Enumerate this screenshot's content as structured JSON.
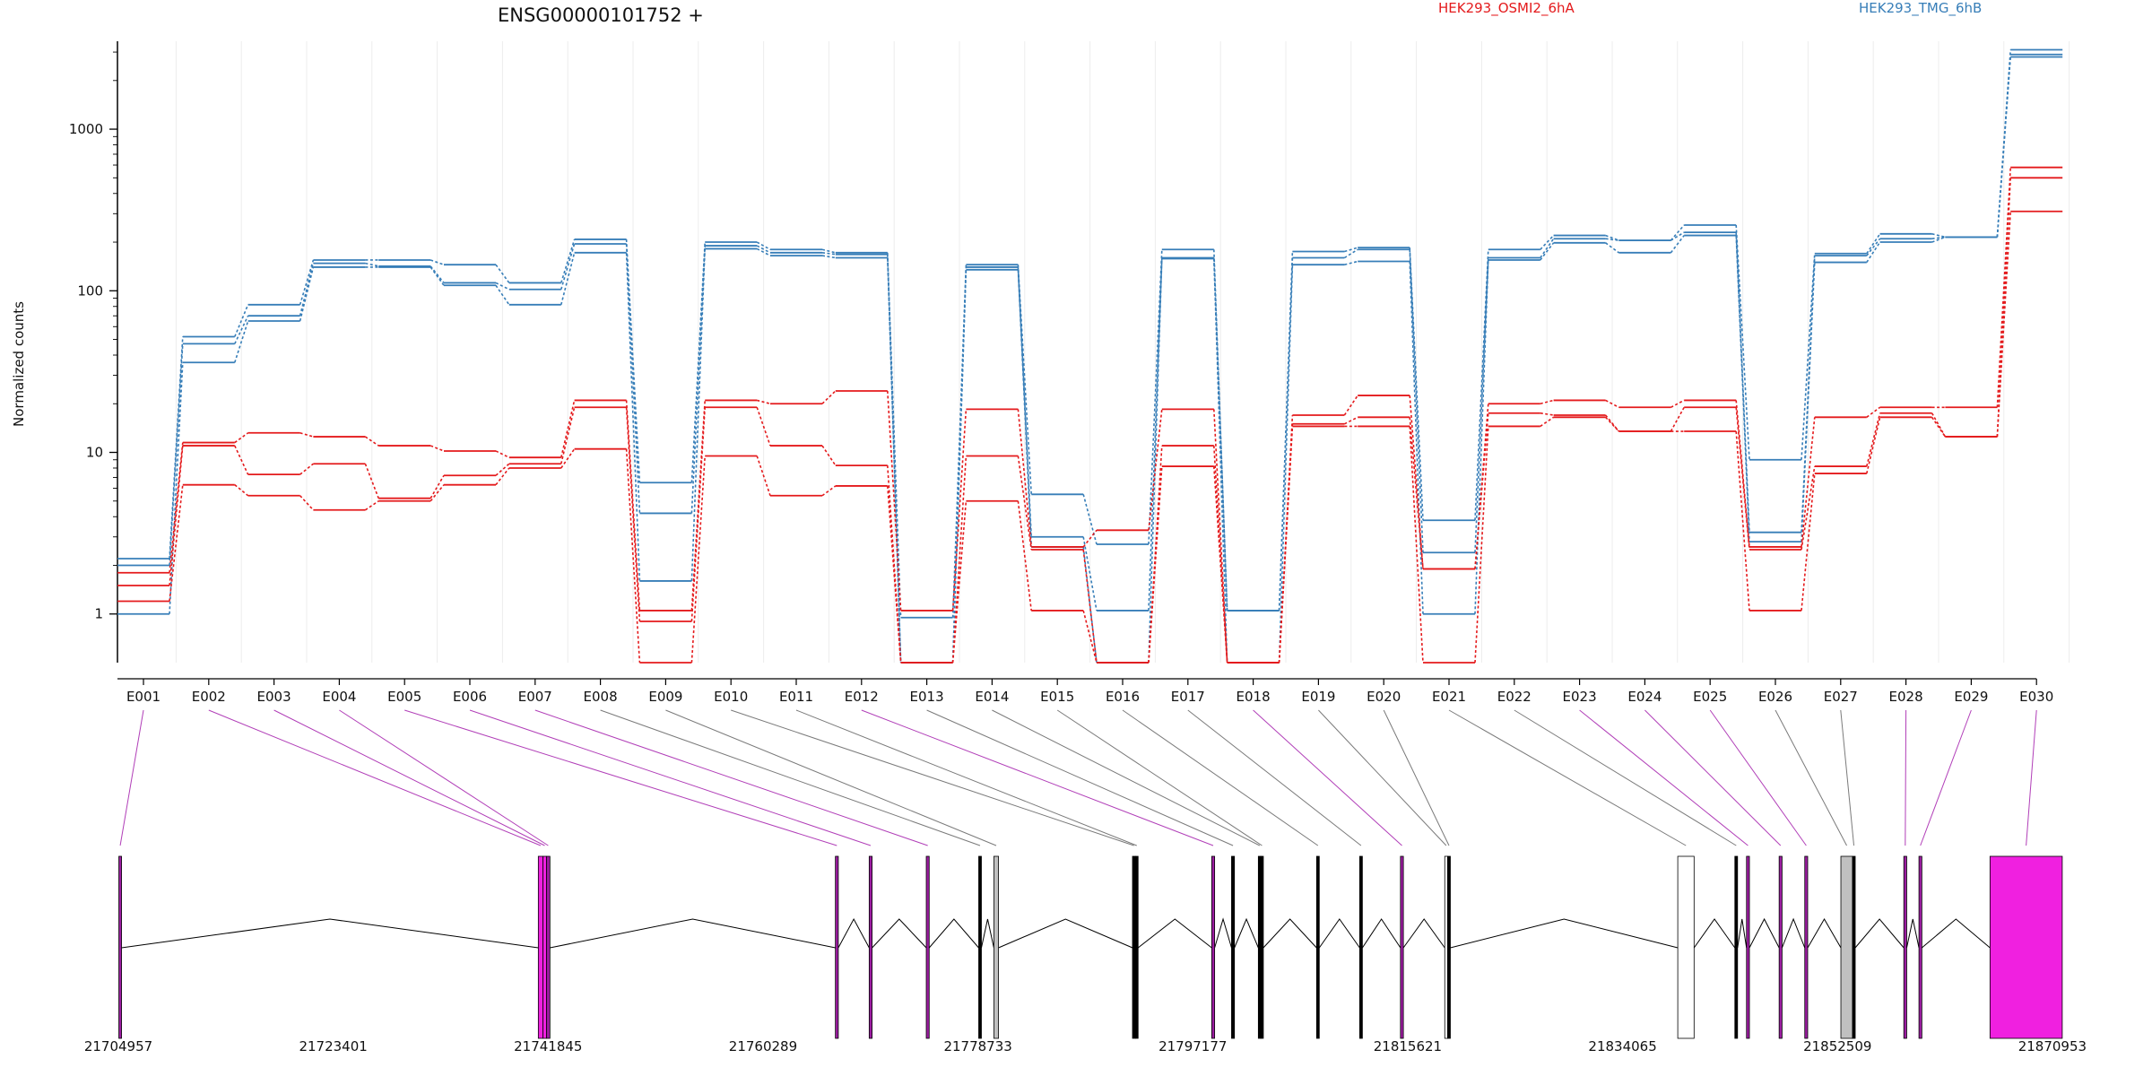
{
  "chart_data": {
    "type": "line",
    "title": "ENSG00000101752 +",
    "ylabel": "Normalized counts",
    "yscale": "log",
    "ylim": [
      0.5,
      3500
    ],
    "yticks": [
      1,
      10,
      100,
      1000
    ],
    "grid": false,
    "legend_position": "top",
    "legend": [
      {
        "name": "HEK293_OSMI2_6hA",
        "color": "#e41a1c"
      },
      {
        "name": "HEK293_TMG_6hB",
        "color": "#377eb8"
      }
    ],
    "categories": [
      "E001",
      "E002",
      "E003",
      "E004",
      "E005",
      "E006",
      "E007",
      "E008",
      "E009",
      "E010",
      "E011",
      "E012",
      "E013",
      "E014",
      "E015",
      "E016",
      "E017",
      "E018",
      "E019",
      "E020",
      "E021",
      "E022",
      "E023",
      "E024",
      "E025",
      "E026",
      "E027",
      "E028",
      "E029",
      "E030"
    ],
    "series": [
      {
        "group": "HEK293_TMG_6hB",
        "color": "#377eb8",
        "values": [
          2.2,
          52,
          82,
          155,
          155,
          145,
          112,
          208,
          6.5,
          200,
          180,
          172,
          0.95,
          145,
          5.5,
          2.7,
          180,
          1.05,
          175,
          185,
          3.8,
          180,
          220,
          205,
          255,
          9,
          170,
          225,
          215,
          3100
        ]
      },
      {
        "group": "HEK293_TMG_6hB",
        "color": "#377eb8",
        "values": [
          2.0,
          47,
          70,
          148,
          142,
          112,
          102,
          195,
          4.2,
          190,
          172,
          168,
          0.5,
          140,
          3.0,
          1.05,
          160,
          1.05,
          160,
          180,
          2.4,
          160,
          210,
          205,
          230,
          3.2,
          165,
          210,
          215,
          2900
        ]
      },
      {
        "group": "HEK293_TMG_6hB",
        "color": "#377eb8",
        "values": [
          1.0,
          36,
          65,
          140,
          140,
          108,
          82,
          172,
          1.6,
          182,
          165,
          160,
          0.5,
          135,
          2.6,
          0.5,
          158,
          0.5,
          145,
          152,
          1.0,
          155,
          198,
          172,
          220,
          2.8,
          150,
          200,
          215,
          2800
        ]
      },
      {
        "group": "HEK293_OSMI2_6hA",
        "color": "#e41a1c",
        "values": [
          1.8,
          11.5,
          13.2,
          12.5,
          11,
          10.2,
          9.3,
          21,
          1.05,
          21,
          20,
          24,
          1.05,
          18.5,
          2.6,
          3.3,
          18.5,
          0.5,
          17,
          22.5,
          1.9,
          20,
          21,
          19,
          21,
          2.6,
          16.5,
          19,
          19,
          580
        ]
      },
      {
        "group": "HEK293_OSMI2_6hA",
        "color": "#e41a1c",
        "values": [
          1.5,
          11,
          7.3,
          8.5,
          5.2,
          7.2,
          8.5,
          19,
          0.9,
          19,
          11,
          8.3,
          0.5,
          9.5,
          2.5,
          0.5,
          11,
          0.5,
          15,
          16.5,
          1.9,
          17.5,
          17,
          13.5,
          19,
          2.5,
          8.2,
          17.5,
          12.5,
          500
        ]
      },
      {
        "group": "HEK293_OSMI2_6hA",
        "color": "#e41a1c",
        "values": [
          1.2,
          6.3,
          5.4,
          4.4,
          5,
          6.3,
          8,
          10.5,
          0.5,
          9.5,
          5.4,
          6.2,
          0.5,
          5,
          1.05,
          0.5,
          8.2,
          0.5,
          14.5,
          14.5,
          0.5,
          14.5,
          16.5,
          13.5,
          13.5,
          1.05,
          7.4,
          16.5,
          12.5,
          310
        ]
      }
    ],
    "genomic_axis": {
      "tick_labels": [
        "21704957",
        "21723401",
        "21741845",
        "21760289",
        "21778733",
        "21797177",
        "21815621",
        "21834065",
        "21852509",
        "21870953"
      ],
      "start": 21704957,
      "end": 21873500,
      "exons": [
        {
          "id": "E001",
          "start": 21705000,
          "end": 21705200,
          "color": "#9b1da0"
        },
        {
          "id": "E002",
          "start": 21741000,
          "end": 21741400,
          "color": "#f020e0"
        },
        {
          "id": "E003",
          "start": 21741400,
          "end": 21741700,
          "color": "#f020e0"
        },
        {
          "id": "E004",
          "start": 21741700,
          "end": 21742000,
          "color": "#9b1da0"
        },
        {
          "id": "E005",
          "start": 21766500,
          "end": 21766750,
          "color": "#9b1da0"
        },
        {
          "id": "E006",
          "start": 21769400,
          "end": 21769650,
          "color": "#9b1da0"
        },
        {
          "id": "E007",
          "start": 21774300,
          "end": 21774550,
          "color": "#9b1da0"
        },
        {
          "id": "E008",
          "start": 21778800,
          "end": 21779000,
          "color": "#000000"
        },
        {
          "id": "E009",
          "start": 21780100,
          "end": 21780500,
          "color": "#c0c0c0"
        },
        {
          "id": "E010",
          "start": 21792000,
          "end": 21792250,
          "color": "#000000"
        },
        {
          "id": "E011",
          "start": 21792250,
          "end": 21792450,
          "color": "#000000"
        },
        {
          "id": "E012",
          "start": 21798800,
          "end": 21799050,
          "color": "#9b1da0"
        },
        {
          "id": "E013",
          "start": 21800500,
          "end": 21800750,
          "color": "#000000"
        },
        {
          "id": "E014",
          "start": 21802800,
          "end": 21803000,
          "color": "#000000"
        },
        {
          "id": "E015",
          "start": 21803000,
          "end": 21803200,
          "color": "#000000"
        },
        {
          "id": "E016",
          "start": 21807800,
          "end": 21808000,
          "color": "#000000"
        },
        {
          "id": "E017",
          "start": 21811500,
          "end": 21811700,
          "color": "#000000"
        },
        {
          "id": "E018",
          "start": 21815000,
          "end": 21815250,
          "color": "#9b1da0"
        },
        {
          "id": "E019",
          "start": 21818800,
          "end": 21819050,
          "color": "#ffffff"
        },
        {
          "id": "E020",
          "start": 21819050,
          "end": 21819250,
          "color": "#000000"
        },
        {
          "id": "E021",
          "start": 21838800,
          "end": 21840200,
          "color": "#ffffff"
        },
        {
          "id": "E022",
          "start": 21843700,
          "end": 21843900,
          "color": "#000000"
        },
        {
          "id": "E023",
          "start": 21844700,
          "end": 21844950,
          "color": "#9b1da0"
        },
        {
          "id": "E024",
          "start": 21847500,
          "end": 21847750,
          "color": "#9b1da0"
        },
        {
          "id": "E025",
          "start": 21849700,
          "end": 21849950,
          "color": "#9b1da0"
        },
        {
          "id": "E026",
          "start": 21852800,
          "end": 21853800,
          "color": "#c0c0c0"
        },
        {
          "id": "E027",
          "start": 21853800,
          "end": 21854000,
          "color": "#000000"
        },
        {
          "id": "E028",
          "start": 21858200,
          "end": 21858450,
          "color": "#9b1da0"
        },
        {
          "id": "E029",
          "start": 21859500,
          "end": 21859750,
          "color": "#9b1da0"
        },
        {
          "id": "E030",
          "start": 21865600,
          "end": 21871800,
          "color": "#f020e0"
        }
      ]
    }
  }
}
